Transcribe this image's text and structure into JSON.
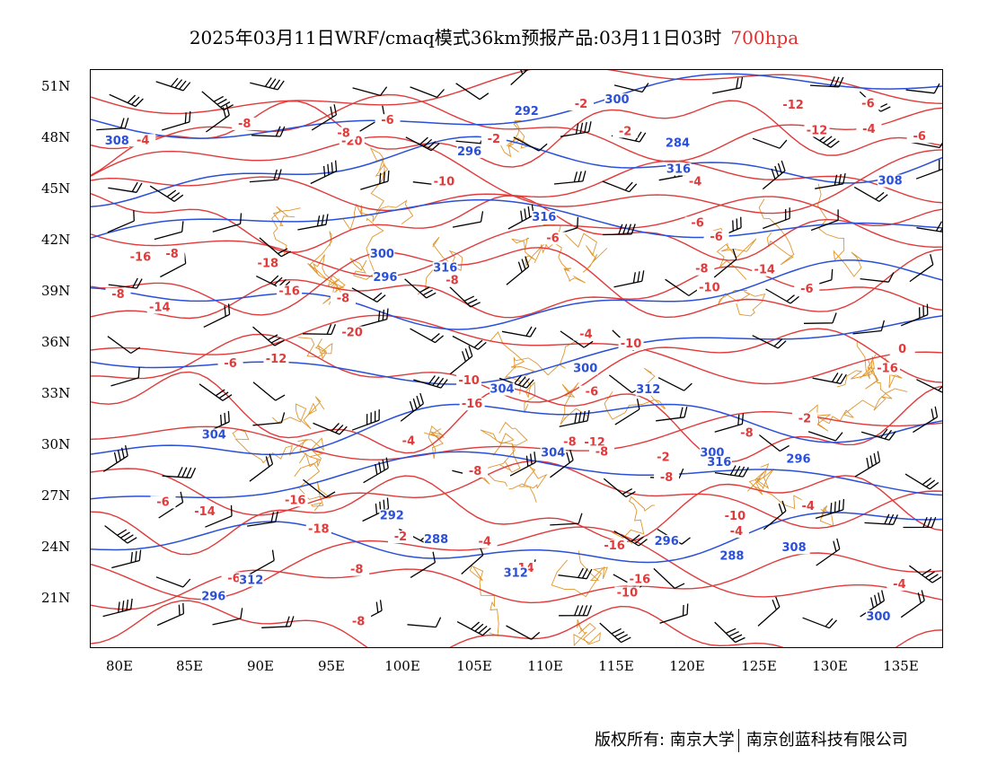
{
  "title": {
    "main": "2025年03月11日WRF/cmaq模式36km预报产品:03月11日03时",
    "level": "700hpa"
  },
  "axes": {
    "lat_labels": [
      "51N",
      "48N",
      "45N",
      "42N",
      "39N",
      "36N",
      "33N",
      "30N",
      "27N",
      "24N",
      "21N"
    ],
    "lon_labels": [
      "80E",
      "85E",
      "90E",
      "95E",
      "100E",
      "105E",
      "110E",
      "115E",
      "120E",
      "125E",
      "130E",
      "135E"
    ]
  },
  "copyright": {
    "left": "版权所有: 南京大学",
    "right": "南京创蓝科技有限公司"
  },
  "colors": {
    "temperature": "#e03a3a",
    "geopotential": "#2a4fd8",
    "terrain_border": "#e0962e",
    "wind_barb": "#000000"
  },
  "contour_labels": {
    "temperature": [
      "-16",
      "-20",
      "-16",
      "-18",
      "-14",
      "-16",
      "-16",
      "-20",
      "-16",
      "-18",
      "-14",
      "-16",
      "-10",
      "-12",
      "-10",
      "-12",
      "-14",
      "-12",
      "-8",
      "-6",
      "-10",
      "-8",
      "-8",
      "-4",
      "-10",
      "-6",
      "-12",
      "-16",
      "-14",
      "-10",
      "-8",
      "-6",
      "-4",
      "-2",
      "-6",
      "-4",
      "-2",
      "-8",
      "0",
      "-2",
      "-2",
      "-4",
      "-6",
      "-4",
      "-2",
      "-2",
      "-8",
      "-8",
      "-6",
      "-4",
      "-4",
      "-6",
      "-8",
      "-6",
      "-4",
      "-4",
      "-2",
      "-8",
      "-8",
      "-6",
      "-8",
      "-10",
      "-8",
      "-6",
      "-8",
      "-6",
      "-8"
    ],
    "geopotential": [
      "296",
      "296",
      "300",
      "304",
      "296",
      "300",
      "308",
      "284",
      "288",
      "292",
      "300",
      "296",
      "288",
      "292",
      "296",
      "300",
      "300",
      "304",
      "304",
      "308",
      "308",
      "312",
      "312",
      "312",
      "316",
      "316",
      "316",
      "316"
    ]
  },
  "icons": [
    "wind-barb-icon"
  ]
}
